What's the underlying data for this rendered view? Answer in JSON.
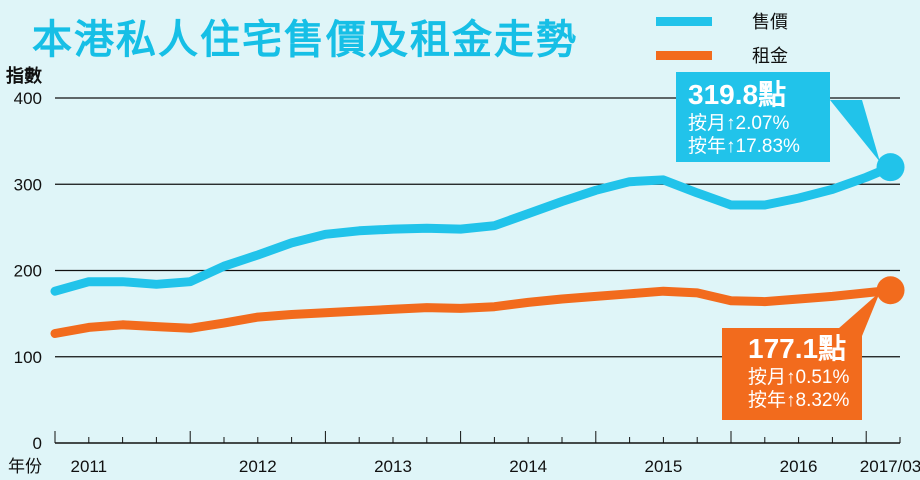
{
  "title": "本港私人住宅售價及租金走勢",
  "legend": [
    {
      "label": "售價",
      "color": "#21c3ea"
    },
    {
      "label": "租金",
      "color": "#f26b1d"
    }
  ],
  "callouts": {
    "price": {
      "value": "319.8點",
      "mom": "按月↑2.07%",
      "yoy": "按年↑17.83%",
      "color": "#21c3ea"
    },
    "rent": {
      "value": "177.1點",
      "mom": "按月↑0.51%",
      "yoy": "按年↑8.32%",
      "color": "#f26b1d"
    }
  },
  "chart_data": {
    "type": "line",
    "title": "本港私人住宅售價及租金走勢",
    "ylabel": "指數",
    "xlabel": "年份",
    "ylim": [
      0,
      400
    ],
    "yticks": [
      "0",
      "100",
      "200",
      "300",
      "400"
    ],
    "xlim": [
      2011.0,
      2017.25
    ],
    "xticks": [
      {
        "label": "2011",
        "pos": 2011.25
      },
      {
        "label": "2012",
        "pos": 2012.5
      },
      {
        "label": "2013",
        "pos": 2013.5
      },
      {
        "label": "2014",
        "pos": 2014.5
      },
      {
        "label": "2015",
        "pos": 2015.5
      },
      {
        "label": "2016",
        "pos": 2016.5
      },
      {
        "label": "2017/03",
        "pos": 2017.18
      }
    ],
    "series": [
      {
        "name": "售價",
        "color": "#21c3ea",
        "x": [
          2011.0,
          2011.25,
          2011.5,
          2011.75,
          2012.0,
          2012.25,
          2012.5,
          2012.75,
          2013.0,
          2013.25,
          2013.5,
          2013.75,
          2014.0,
          2014.25,
          2014.5,
          2014.75,
          2015.0,
          2015.25,
          2015.5,
          2015.75,
          2016.0,
          2016.25,
          2016.5,
          2016.75,
          2017.0,
          2017.18
        ],
        "values": [
          176,
          187,
          187,
          184,
          187,
          205,
          218,
          232,
          242,
          246,
          248,
          249,
          248,
          252,
          266,
          280,
          293,
          303,
          305,
          290,
          276,
          276,
          284,
          294,
          308,
          319.8
        ]
      },
      {
        "name": "租金",
        "color": "#f26b1d",
        "x": [
          2011.0,
          2011.25,
          2011.5,
          2011.75,
          2012.0,
          2012.25,
          2012.5,
          2012.75,
          2013.0,
          2013.25,
          2013.5,
          2013.75,
          2014.0,
          2014.25,
          2014.5,
          2014.75,
          2015.0,
          2015.25,
          2015.5,
          2015.75,
          2016.0,
          2016.25,
          2016.5,
          2016.75,
          2017.0,
          2017.18
        ],
        "values": [
          127,
          134,
          137,
          135,
          133,
          139,
          146,
          149,
          151,
          153,
          155,
          157,
          156,
          158,
          163,
          167,
          170,
          173,
          176,
          174,
          165,
          164,
          167,
          170,
          174,
          177.1
        ]
      }
    ]
  }
}
